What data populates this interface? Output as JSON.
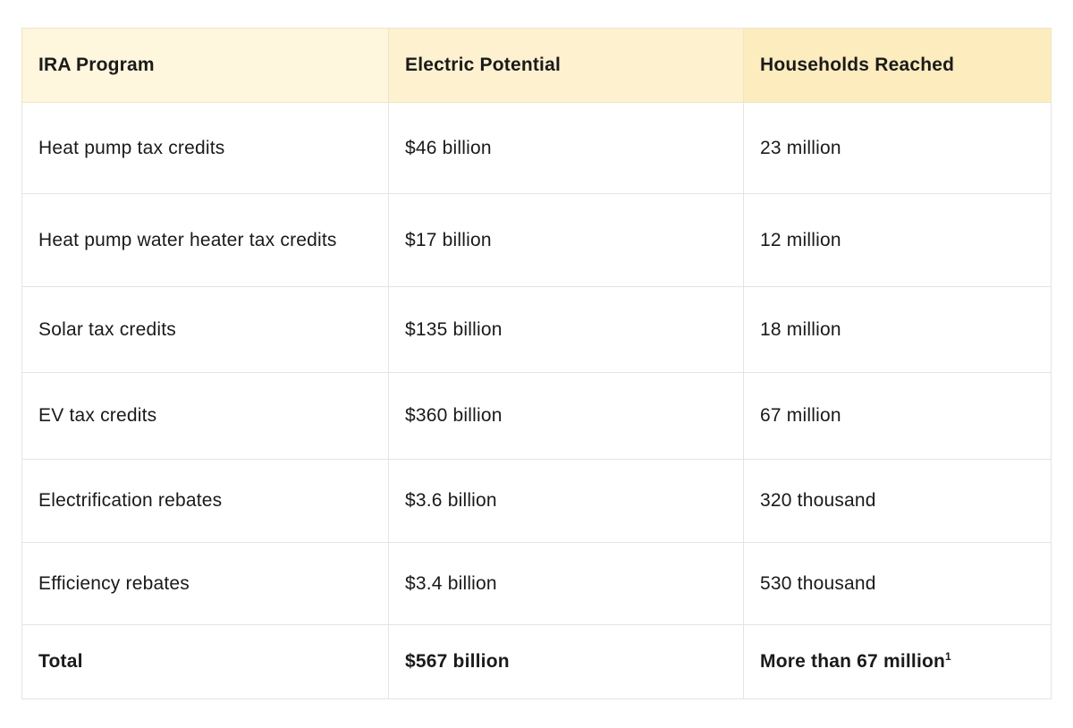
{
  "table": {
    "headers": [
      "IRA Program",
      "Electric Potential",
      "Households Reached"
    ],
    "rows": [
      [
        "Heat pump tax credits",
        "$46 billion",
        "23 million"
      ],
      [
        "Heat pump water heater tax credits",
        "$17 billion",
        "12 million"
      ],
      [
        "Solar tax credits",
        "$135 billion",
        "18 million"
      ],
      [
        "EV tax credits",
        "$360 billion",
        "67 million"
      ],
      [
        "Electrification rebates",
        "$3.6 billion",
        "320 thousand"
      ],
      [
        "Efficiency rebates",
        "$3.4 billion",
        "530 thousand"
      ]
    ],
    "total": {
      "label": "Total",
      "electric_potential": "$567 billion",
      "households_reached": "More than 67 million",
      "footnote_marker": "1"
    }
  },
  "colors": {
    "header_bg_left": "#fef6dd",
    "header_bg_mid": "#fdf1d0",
    "header_bg_right": "#fcecbe",
    "border": "#e4e4e4"
  }
}
